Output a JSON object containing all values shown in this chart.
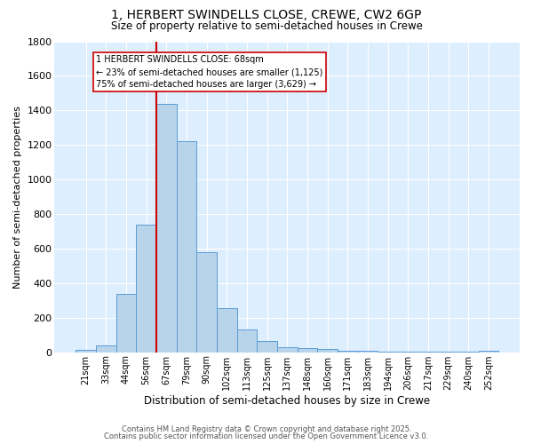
{
  "title_line1": "1, HERBERT SWINDELLS CLOSE, CREWE, CW2 6GP",
  "title_line2": "Size of property relative to semi-detached houses in Crewe",
  "xlabel": "Distribution of semi-detached houses by size in Crewe",
  "ylabel": "Number of semi-detached properties",
  "bar_labels": [
    "21sqm",
    "33sqm",
    "44sqm",
    "56sqm",
    "67sqm",
    "79sqm",
    "90sqm",
    "102sqm",
    "113sqm",
    "125sqm",
    "137sqm",
    "148sqm",
    "160sqm",
    "171sqm",
    "183sqm",
    "194sqm",
    "206sqm",
    "217sqm",
    "229sqm",
    "240sqm",
    "252sqm"
  ],
  "bar_values": [
    15,
    40,
    340,
    740,
    1440,
    1220,
    580,
    255,
    130,
    65,
    30,
    25,
    20,
    8,
    8,
    5,
    3,
    3,
    1,
    3,
    10
  ],
  "bar_color": "#b8d4ea",
  "bar_edge_color": "#5b9bd5",
  "background_color": "#ddeeff",
  "grid_color": "#ffffff",
  "vline_color": "#cc0000",
  "vline_index": 4,
  "annotation_text": "1 HERBERT SWINDELLS CLOSE: 68sqm\n← 23% of semi-detached houses are smaller (1,125)\n75% of semi-detached houses are larger (3,629) →",
  "annotation_box_color": "#ffffff",
  "annotation_box_edge": "#cc0000",
  "footer_line1": "Contains HM Land Registry data © Crown copyright and database right 2025.",
  "footer_line2": "Contains public sector information licensed under the Open Government Licence v3.0.",
  "ylim": [
    0,
    1800
  ],
  "yticks": [
    0,
    200,
    400,
    600,
    800,
    1000,
    1200,
    1400,
    1600,
    1800
  ],
  "fig_width": 6.0,
  "fig_height": 5.0,
  "dpi": 100
}
